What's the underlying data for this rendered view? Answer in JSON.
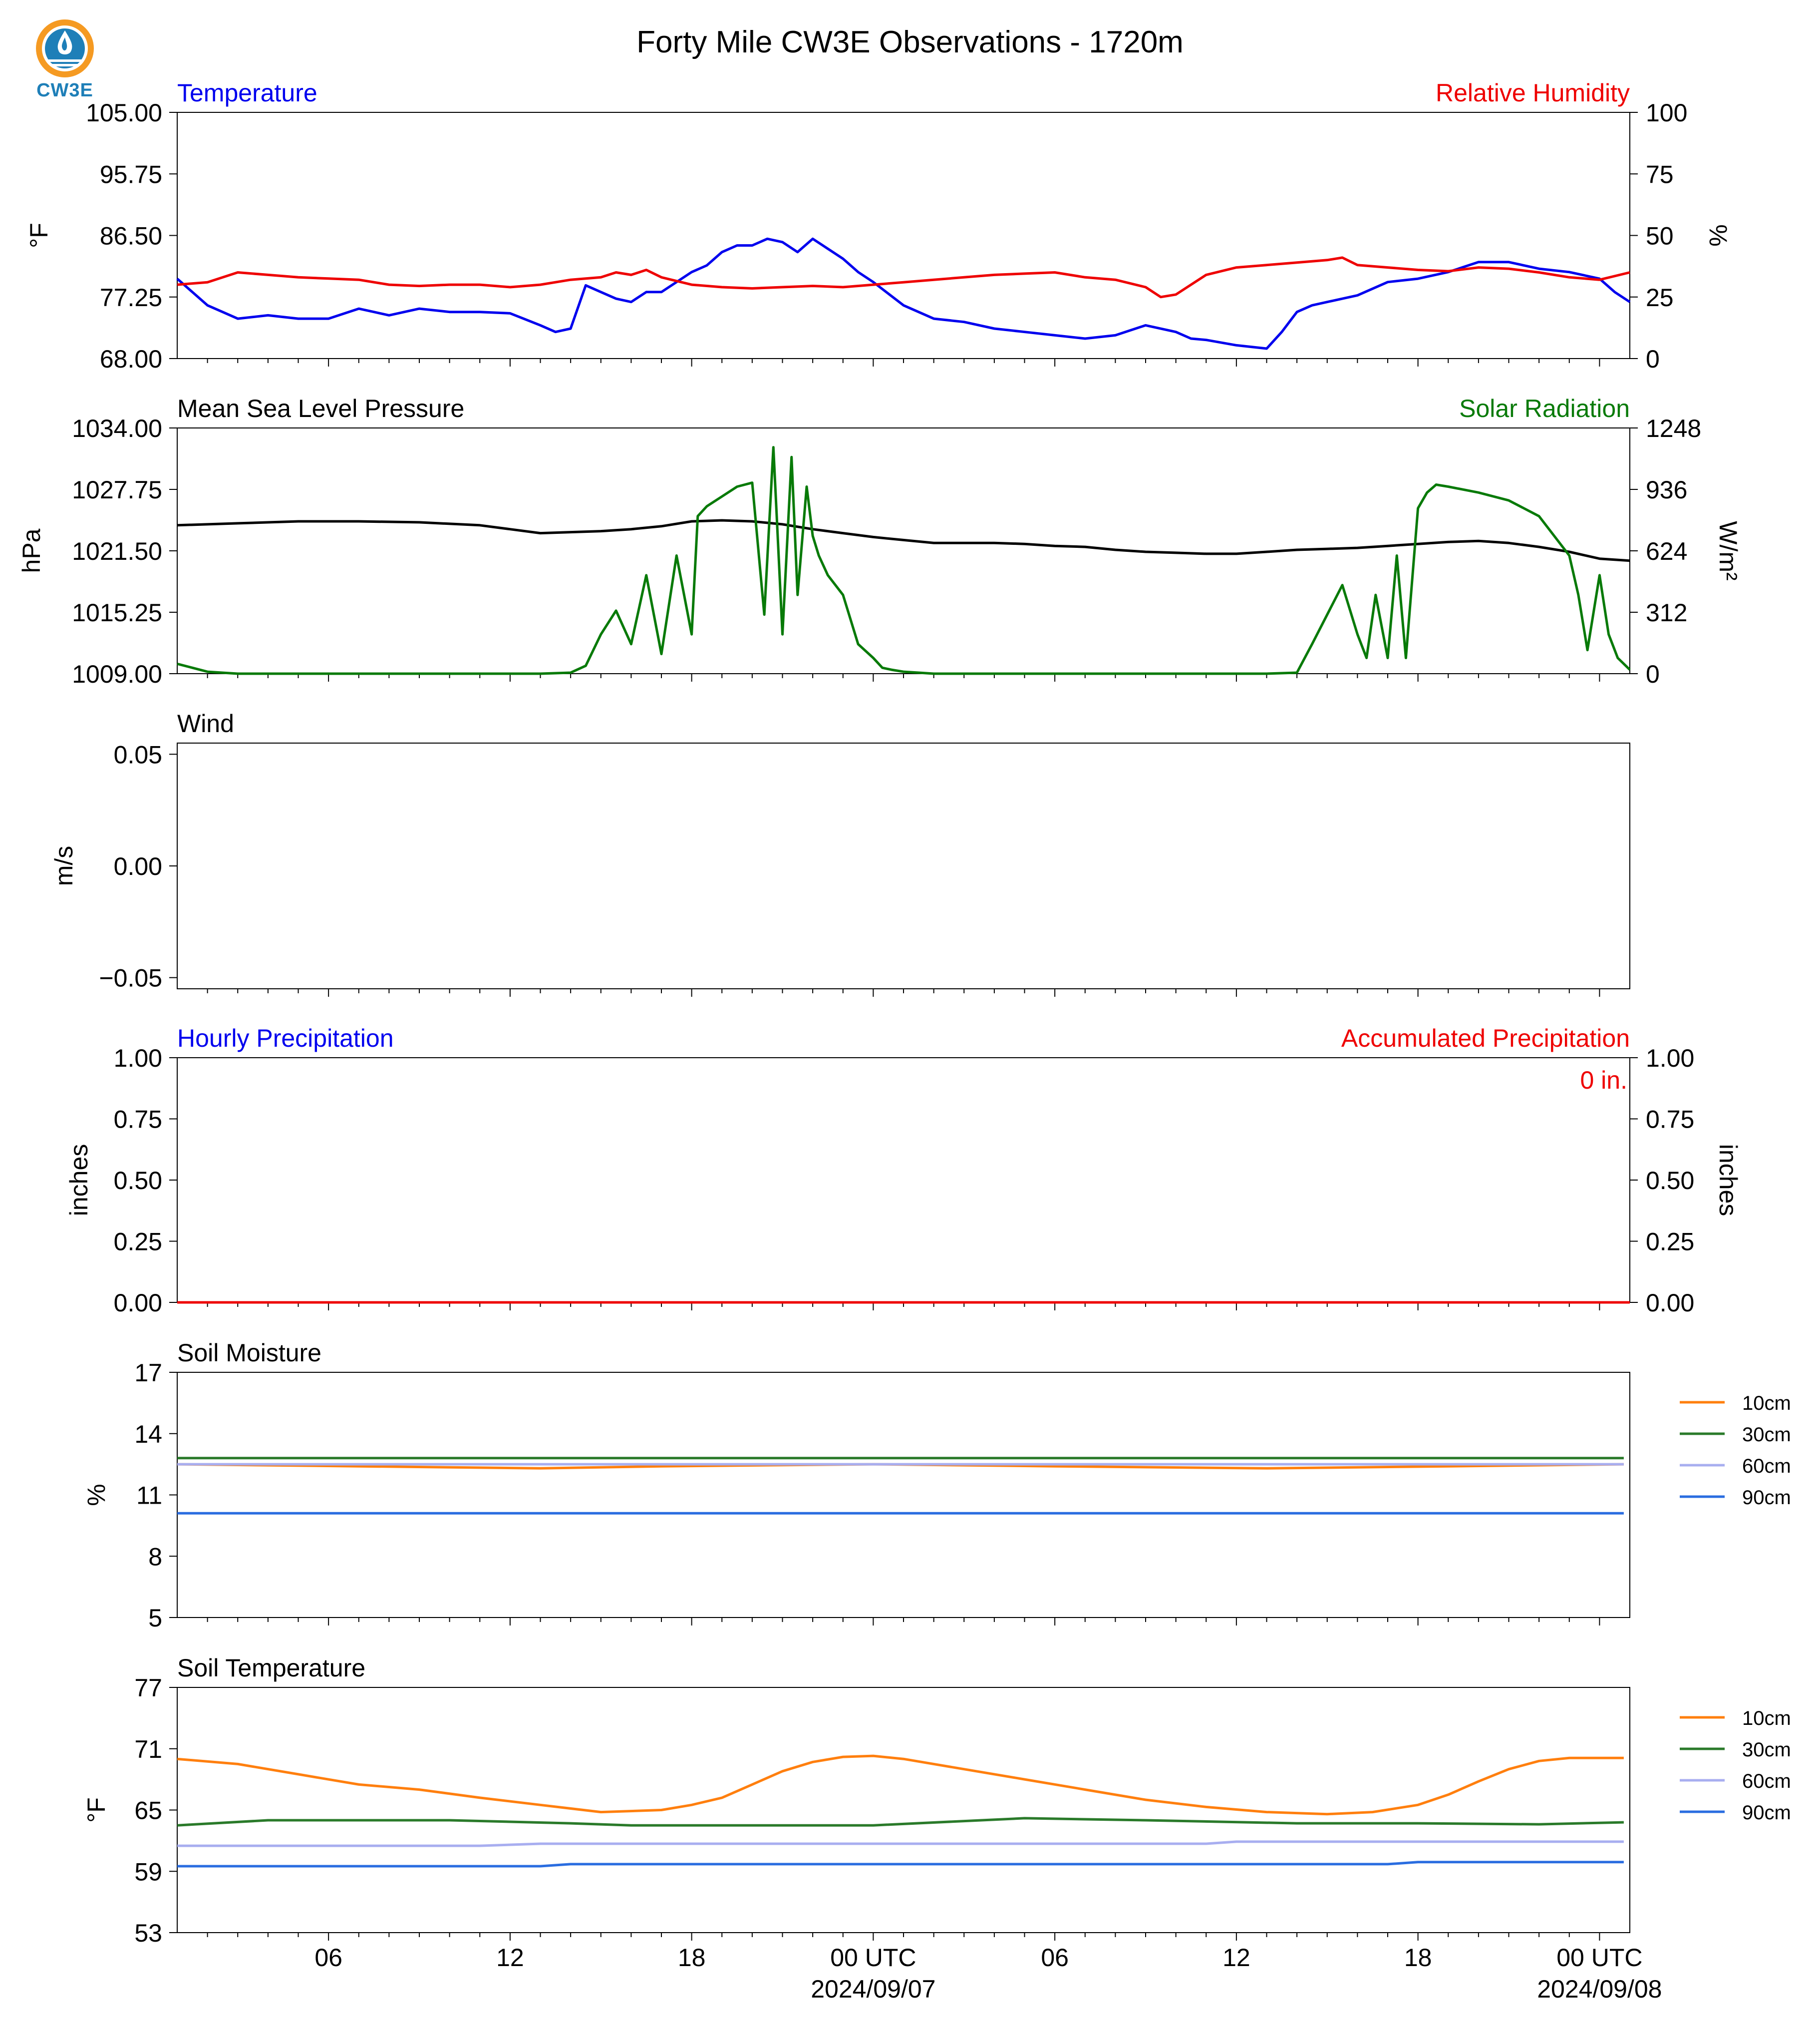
{
  "title": "Forty Mile CW3E Observations - 1720m",
  "logo": {
    "text": "CW3E",
    "icon": "cw3e-logo-icon"
  },
  "colors": {
    "temperature": "#0000ee",
    "humidity": "#ee0000",
    "pressure": "#000000",
    "solar": "#087a08",
    "hourly_precip": "#0000ee",
    "accum_precip": "#ee0000",
    "soil_10cm": "#ff7f0e",
    "soil_30cm": "#2a7a2a",
    "soil_60cm": "#a8aef0",
    "soil_90cm": "#2a6de0"
  },
  "x_axis": {
    "tick_labels": [
      "06",
      "12",
      "18",
      "00 UTC",
      "06",
      "12",
      "18",
      "00 UTC"
    ],
    "tick_hours": [
      6,
      12,
      18,
      24,
      30,
      36,
      42,
      48
    ],
    "date_labels": [
      "2024/09/07",
      "2024/09/08"
    ],
    "date_hours": [
      24,
      48
    ],
    "range_hours": [
      1,
      49
    ]
  },
  "chart_data": [
    {
      "id": "temp-rh",
      "type": "line",
      "left_title": "Temperature",
      "right_title": "Relative Humidity",
      "ylabel": "°F",
      "ylabel_right": "%",
      "ylim": [
        68,
        105
      ],
      "ylim_right": [
        0,
        100
      ],
      "yticks": [
        "68.00",
        "77.25",
        "86.50",
        "95.75",
        "105.00"
      ],
      "yticks_right": [
        "0",
        "25",
        "50",
        "75",
        "100"
      ],
      "grid": false,
      "series": [
        {
          "name": "Temperature",
          "axis": "left",
          "x": [
            1,
            1.5,
            2,
            2.5,
            3,
            4,
            5,
            6,
            7,
            7.5,
            8,
            9,
            10,
            11,
            12,
            13,
            13.5,
            14,
            14.5,
            15,
            15.5,
            16,
            16.5,
            17,
            17.5,
            18,
            18.5,
            19,
            19.5,
            20,
            20.5,
            21,
            21.5,
            22,
            22.5,
            23,
            23.5,
            24,
            25,
            26,
            27,
            28,
            29,
            30,
            31,
            32,
            33,
            34,
            34.5,
            35,
            36,
            37,
            37.5,
            38,
            38.5,
            39,
            40,
            41,
            42,
            42.5,
            43,
            44,
            45,
            46,
            47,
            48,
            48.5,
            49
          ],
          "y": [
            80,
            78,
            76,
            75,
            74,
            74.5,
            74,
            74,
            75.5,
            75,
            74.5,
            75.5,
            75,
            75,
            74.8,
            73,
            72,
            72.5,
            79,
            78,
            77,
            76.5,
            78,
            78,
            79.5,
            81,
            82,
            84,
            85,
            85,
            86,
            85.5,
            84,
            86,
            84.5,
            83,
            81,
            79.5,
            76,
            74,
            73.5,
            72.5,
            72,
            71.5,
            71,
            71.5,
            73,
            72,
            71,
            70.8,
            70,
            69.5,
            72,
            75,
            76,
            76.5,
            77.5,
            79.5,
            80,
            80.5,
            81,
            82.5,
            82.5,
            81.5,
            81,
            80,
            78,
            76.5
          ]
        },
        {
          "name": "Relative Humidity",
          "axis": "right",
          "x": [
            1,
            2,
            3,
            4,
            5,
            6,
            7,
            8,
            9,
            10,
            11,
            12,
            13,
            14,
            15,
            15.5,
            16,
            16.5,
            17,
            18,
            19,
            20,
            21,
            22,
            23,
            24,
            25,
            26,
            27,
            28,
            29,
            30,
            31,
            32,
            33,
            33.5,
            34,
            35,
            36,
            37,
            38,
            39,
            39.5,
            40,
            41,
            42,
            43,
            44,
            45,
            46,
            47,
            48,
            49
          ],
          "y": [
            30,
            31,
            35,
            34,
            33,
            32.5,
            32,
            30,
            29.5,
            30,
            30,
            29,
            30,
            32,
            33,
            35,
            34,
            36,
            33,
            30,
            29,
            28.5,
            29,
            29.5,
            29,
            30,
            31,
            32,
            33,
            34,
            34.5,
            35,
            33,
            32,
            29,
            25,
            26,
            34,
            37,
            38,
            39,
            40,
            41,
            38,
            37,
            36,
            35.5,
            37,
            36.5,
            35,
            33,
            32,
            35
          ]
        }
      ]
    },
    {
      "id": "pressure-solar",
      "type": "line",
      "left_title": "Mean Sea Level Pressure",
      "right_title": "Solar Radiation",
      "ylabel": "hPa",
      "ylabel_right": "W/m²",
      "ylim": [
        1009,
        1034
      ],
      "ylim_right": [
        0,
        1248
      ],
      "yticks": [
        "1009.00",
        "1015.25",
        "1021.50",
        "1027.75",
        "1034.00"
      ],
      "yticks_right": [
        "0",
        "312",
        "624",
        "936",
        "1248"
      ],
      "grid": false,
      "series": [
        {
          "name": "Mean Sea Level Pressure",
          "axis": "left",
          "x": [
            1,
            3,
            5,
            7,
            9,
            11,
            12,
            13,
            14,
            15,
            16,
            17,
            18,
            19,
            20,
            21,
            22,
            23,
            24,
            25,
            26,
            27,
            28,
            29,
            30,
            31,
            32,
            33,
            34,
            35,
            36,
            37,
            38,
            39,
            40,
            41,
            42,
            43,
            44,
            45,
            46,
            47,
            48,
            49
          ],
          "y": [
            1024.1,
            1024.3,
            1024.5,
            1024.5,
            1024.4,
            1024.1,
            1023.7,
            1023.3,
            1023.4,
            1023.5,
            1023.7,
            1024.0,
            1024.5,
            1024.6,
            1024.5,
            1024.2,
            1023.7,
            1023.3,
            1022.9,
            1022.6,
            1022.3,
            1022.3,
            1022.3,
            1022.2,
            1022.0,
            1021.9,
            1021.6,
            1021.4,
            1021.3,
            1021.2,
            1021.2,
            1021.4,
            1021.6,
            1021.7,
            1021.8,
            1022.0,
            1022.2,
            1022.4,
            1022.5,
            1022.3,
            1021.9,
            1021.4,
            1020.7,
            1020.5
          ]
        },
        {
          "name": "Solar Radiation",
          "axis": "right",
          "x": [
            1,
            1.5,
            2,
            3,
            5,
            7,
            9,
            11,
            12,
            13,
            14,
            14.5,
            15,
            15.5,
            16,
            16.5,
            17,
            17.5,
            18,
            18.2,
            18.5,
            19,
            19.5,
            20,
            20.4,
            20.7,
            21,
            21.3,
            21.5,
            21.8,
            22,
            22.2,
            22.5,
            23,
            23.5,
            24,
            24.3,
            24.6,
            25,
            25.5,
            26,
            27,
            29,
            31,
            33,
            35,
            37,
            38,
            38.5,
            39,
            39.5,
            40,
            40.3,
            40.6,
            41,
            41.3,
            41.6,
            42,
            42.3,
            42.6,
            43,
            44,
            45,
            46,
            46.5,
            47,
            47.3,
            47.6,
            48,
            48.3,
            48.6,
            49
          ],
          "y": [
            50,
            30,
            10,
            0,
            0,
            0,
            0,
            0,
            0,
            0,
            5,
            40,
            200,
            320,
            150,
            500,
            100,
            600,
            200,
            800,
            850,
            900,
            950,
            970,
            300,
            1150,
            200,
            1100,
            400,
            950,
            700,
            600,
            500,
            400,
            150,
            80,
            30,
            20,
            10,
            5,
            0,
            0,
            0,
            0,
            0,
            0,
            0,
            5,
            150,
            300,
            450,
            200,
            80,
            400,
            80,
            600,
            80,
            840,
            920,
            960,
            950,
            920,
            880,
            800,
            700,
            600,
            400,
            120,
            500,
            200,
            80,
            20
          ]
        }
      ]
    },
    {
      "id": "wind",
      "type": "line",
      "left_title": "Wind",
      "ylabel": "m/s",
      "ylim": [
        -0.055,
        0.055
      ],
      "yticks": [
        "−0.05",
        "0.00",
        "0.05"
      ],
      "grid": false,
      "series": []
    },
    {
      "id": "precip",
      "type": "line",
      "left_title": "Hourly Precipitation",
      "right_title": "Accumulated Precipitation",
      "ylabel": "inches",
      "ylabel_right": "inches",
      "annotation": "0 in.",
      "ylim": [
        0,
        1
      ],
      "ylim_right": [
        0,
        1
      ],
      "yticks": [
        "0.00",
        "0.25",
        "0.50",
        "0.75",
        "1.00"
      ],
      "yticks_right": [
        "0.00",
        "0.25",
        "0.50",
        "0.75",
        "1.00"
      ],
      "grid": false,
      "series": [
        {
          "name": "Hourly Precipitation",
          "axis": "left",
          "x": [
            1,
            49
          ],
          "y": [
            0,
            0
          ]
        },
        {
          "name": "Accumulated Precipitation",
          "axis": "right",
          "x": [
            1,
            49
          ],
          "y": [
            0,
            0
          ]
        }
      ]
    },
    {
      "id": "soil-moisture",
      "type": "line",
      "left_title": "Soil Moisture",
      "ylabel": "%",
      "ylim": [
        5,
        17
      ],
      "yticks": [
        "5",
        "8",
        "11",
        "14",
        "17"
      ],
      "legend": "right",
      "grid": false,
      "series": [
        {
          "name": "10cm",
          "x": [
            1,
            7,
            13,
            17,
            24,
            30,
            37,
            43,
            48.8
          ],
          "y": [
            12.5,
            12.4,
            12.3,
            12.4,
            12.5,
            12.4,
            12.3,
            12.4,
            12.5
          ]
        },
        {
          "name": "30cm",
          "x": [
            1,
            48.8
          ],
          "y": [
            12.8,
            12.8
          ]
        },
        {
          "name": "60cm",
          "x": [
            1,
            48.8
          ],
          "y": [
            12.5,
            12.5
          ]
        },
        {
          "name": "90cm",
          "x": [
            1,
            48.8
          ],
          "y": [
            10.1,
            10.1
          ]
        }
      ]
    },
    {
      "id": "soil-temp",
      "type": "line",
      "left_title": "Soil Temperature",
      "ylabel": "°F",
      "ylim": [
        53,
        77
      ],
      "yticks": [
        "53",
        "59",
        "65",
        "71",
        "77"
      ],
      "legend": "right",
      "grid": false,
      "series": [
        {
          "name": "10cm",
          "x": [
            1,
            3,
            5,
            7,
            9,
            11,
            13,
            15,
            17,
            18,
            19,
            20,
            21,
            22,
            23,
            24,
            25,
            27,
            29,
            31,
            33,
            35,
            37,
            39,
            40.5,
            42,
            43,
            44,
            45,
            46,
            47,
            48,
            48.8
          ],
          "y": [
            70,
            69.5,
            68.5,
            67.5,
            67,
            66.2,
            65.5,
            64.8,
            65,
            65.5,
            66.2,
            67.5,
            68.8,
            69.7,
            70.2,
            70.3,
            70,
            69,
            68,
            67,
            66,
            65.3,
            64.8,
            64.6,
            64.8,
            65.5,
            66.5,
            67.8,
            69,
            69.8,
            70.1,
            70.1,
            70.1
          ]
        },
        {
          "name": "30cm",
          "x": [
            1,
            4,
            10,
            14,
            16,
            24,
            29,
            33,
            38,
            42,
            46,
            48.8
          ],
          "y": [
            63.5,
            64,
            64,
            63.7,
            63.5,
            63.5,
            64.2,
            64,
            63.7,
            63.7,
            63.6,
            63.8
          ]
        },
        {
          "name": "60cm",
          "x": [
            1,
            11,
            13,
            35,
            36,
            48.8
          ],
          "y": [
            61.5,
            61.5,
            61.7,
            61.7,
            61.9,
            61.9
          ]
        },
        {
          "name": "90cm",
          "x": [
            1,
            13,
            14,
            41,
            42,
            48.8
          ],
          "y": [
            59.5,
            59.5,
            59.7,
            59.7,
            59.9,
            59.9
          ]
        }
      ]
    }
  ]
}
